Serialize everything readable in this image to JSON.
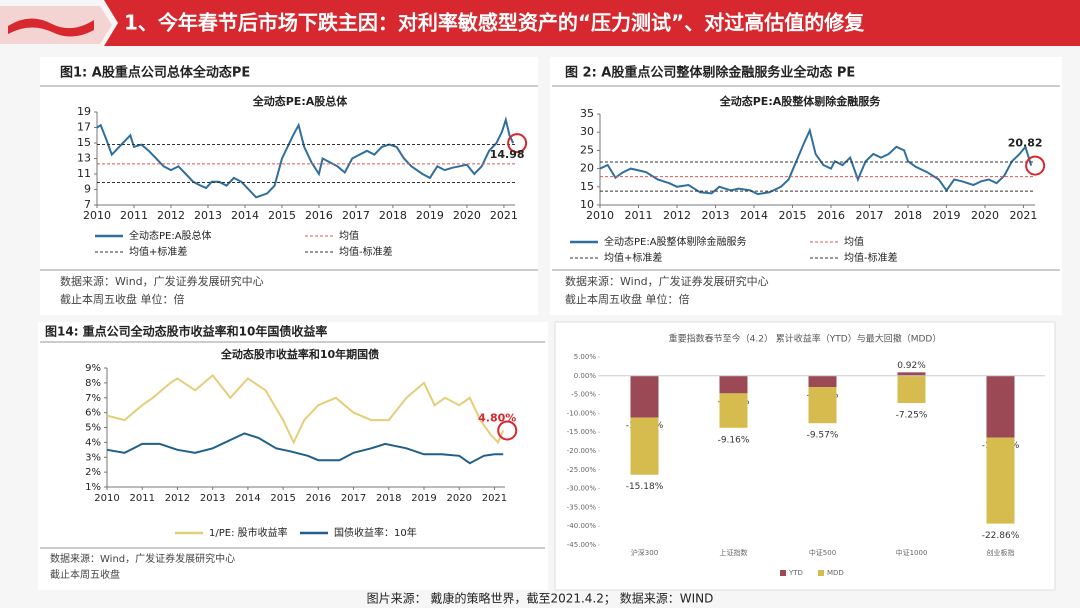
{
  "header": {
    "title": "1、今年春节后市场下跌主因：对利率敏感型资产的“压力测试”、对过高估值的修复"
  },
  "footer": {
    "source": "图片来源： 戴康的策略世界，截至2021.4.2；  数据来源：WIND"
  },
  "chart_data": [
    {
      "type": "line",
      "figure_label": "图1:  A股重点公司总体全动态PE",
      "title": "全动态PE:A股总体",
      "xlim": [
        2010,
        2021.3
      ],
      "xticks": [
        2010,
        2011,
        2012,
        2013,
        2014,
        2015,
        2016,
        2017,
        2018,
        2019,
        2020,
        2021
      ],
      "ylim": [
        7,
        19
      ],
      "yticks": [
        7,
        9,
        11,
        13,
        15,
        17,
        19
      ],
      "series": [
        {
          "name": "全动态PE:A股总体",
          "color": "#2f6f9f",
          "x": [
            2010.0,
            2010.1,
            2010.25,
            2010.4,
            2010.5,
            2010.7,
            2010.9,
            2011.0,
            2011.2,
            2011.4,
            2011.6,
            2011.8,
            2012.0,
            2012.2,
            2012.4,
            2012.6,
            2012.8,
            2012.95,
            2013.1,
            2013.3,
            2013.5,
            2013.7,
            2013.9,
            2014.0,
            2014.3,
            2014.6,
            2014.8,
            2015.0,
            2015.3,
            2015.45,
            2015.6,
            2015.8,
            2016.0,
            2016.1,
            2016.3,
            2016.5,
            2016.7,
            2016.9,
            2017.1,
            2017.3,
            2017.5,
            2017.7,
            2017.9,
            2018.1,
            2018.3,
            2018.5,
            2018.8,
            2019.0,
            2019.2,
            2019.4,
            2019.6,
            2019.8,
            2020.0,
            2020.2,
            2020.4,
            2020.6,
            2020.8,
            2020.95,
            2021.05,
            2021.15,
            2021.25
          ],
          "values": [
            17,
            17.3,
            15.5,
            13.5,
            14,
            15,
            16,
            14.5,
            14.8,
            14,
            13,
            12,
            11.5,
            12,
            11,
            10,
            9.5,
            9.2,
            10,
            10,
            9.5,
            10.5,
            10,
            9.5,
            8,
            8.5,
            9.5,
            13,
            16,
            17.3,
            14.5,
            12.5,
            11,
            13,
            12.5,
            12,
            11.2,
            13,
            13.5,
            14,
            13.5,
            14.5,
            14.8,
            14.5,
            13,
            12,
            11,
            10.5,
            12,
            11.5,
            11.8,
            12,
            12.2,
            11,
            12,
            14,
            15,
            16.5,
            18,
            16,
            14.98
          ]
        }
      ],
      "reference_lines": [
        {
          "name": "均值",
          "value": 12.3,
          "color": "#e05555",
          "dashed": true
        },
        {
          "name": "均值+标准差",
          "value": 14.8,
          "color": "#333333",
          "dashed": true
        },
        {
          "name": "均值-标准差",
          "value": 9.9,
          "color": "#333333",
          "dashed": true
        }
      ],
      "annotations": [
        "14.98"
      ],
      "sources": [
        "数据来源：Wind，广发证券发展研究中心",
        "截止本周五收盘  单位：倍"
      ]
    },
    {
      "type": "line",
      "figure_label": "图 2:  A股重点公司整体剔除金融服务业全动态 PE",
      "title": "全动态PE:A股整体剔除金融服务",
      "xlim": [
        2010,
        2021.3
      ],
      "xticks": [
        2010,
        2011,
        2012,
        2013,
        2014,
        2015,
        2016,
        2017,
        2018,
        2019,
        2020,
        2021
      ],
      "ylim": [
        10,
        35
      ],
      "yticks": [
        10,
        15,
        20,
        25,
        30,
        35
      ],
      "series": [
        {
          "name": "全动态PE:A股整体剔除金融服务",
          "color": "#2f6f9f",
          "x": [
            2010.0,
            2010.2,
            2010.4,
            2010.6,
            2010.8,
            2011.0,
            2011.2,
            2011.5,
            2011.8,
            2012.0,
            2012.3,
            2012.6,
            2012.9,
            2013.1,
            2013.4,
            2013.6,
            2013.9,
            2014.1,
            2014.4,
            2014.7,
            2014.9,
            2015.1,
            2015.3,
            2015.45,
            2015.6,
            2015.8,
            2016.0,
            2016.1,
            2016.3,
            2016.5,
            2016.7,
            2016.9,
            2017.1,
            2017.3,
            2017.5,
            2017.7,
            2017.9,
            2018.0,
            2018.2,
            2018.5,
            2018.8,
            2019.0,
            2019.2,
            2019.4,
            2019.7,
            2019.9,
            2020.1,
            2020.3,
            2020.5,
            2020.7,
            2020.9,
            2021.05,
            2021.2
          ],
          "values": [
            20,
            21,
            17.5,
            19,
            20,
            19.5,
            19,
            17,
            16,
            15,
            15.5,
            13.5,
            13.2,
            15,
            14,
            14.5,
            14,
            13,
            13.5,
            15,
            17,
            22,
            27,
            30.5,
            24,
            21,
            20,
            22,
            21,
            23,
            17,
            22,
            24,
            23,
            24,
            26,
            25,
            22,
            20.5,
            19,
            17,
            14,
            17,
            16.5,
            15.5,
            16.5,
            17,
            16,
            18,
            22,
            24,
            26,
            20.82
          ]
        }
      ],
      "reference_lines": [
        {
          "name": "均值",
          "value": 17.8,
          "color": "#e05555",
          "dashed": true
        },
        {
          "name": "均值+标准差",
          "value": 21.8,
          "color": "#333333",
          "dashed": true
        },
        {
          "name": "均值-标准差",
          "value": 13.8,
          "color": "#333333",
          "dashed": true
        }
      ],
      "annotations": [
        "20.82"
      ],
      "sources": [
        "数据来源：Wind，广发证券发展研究中心",
        "截止本周五收盘  单位：倍"
      ]
    },
    {
      "type": "line",
      "figure_label": "图14:  重点公司全动态股市收益率和10年国债收益率",
      "title": "全动态股市收益率和10年期国债",
      "xlim": [
        2010,
        2021.3
      ],
      "xticks": [
        2010,
        2011,
        2012,
        2013,
        2014,
        2015,
        2016,
        2017,
        2018,
        2019,
        2020,
        2021
      ],
      "ylim": [
        1,
        9
      ],
      "yticks": [
        {
          "value": 1,
          "label": "1%"
        },
        {
          "value": 2,
          "label": "2%"
        },
        {
          "value": 3,
          "label": "3%"
        },
        {
          "value": 4,
          "label": "4%"
        },
        {
          "value": 5,
          "label": "5%"
        },
        {
          "value": 6,
          "label": "6%"
        },
        {
          "value": 7,
          "label": "7%"
        },
        {
          "value": 8,
          "label": "8%"
        },
        {
          "value": 9,
          "label": "9%"
        }
      ],
      "series": [
        {
          "name": "1/PE:  股市收益率",
          "color": "#e6cd78",
          "x": [
            2010.0,
            2010.5,
            2011.0,
            2011.3,
            2011.8,
            2012.0,
            2012.5,
            2013.0,
            2013.5,
            2014.0,
            2014.5,
            2015.0,
            2015.3,
            2015.6,
            2016.0,
            2016.5,
            2017.0,
            2017.5,
            2018.0,
            2018.5,
            2019.0,
            2019.3,
            2019.6,
            2020.0,
            2020.3,
            2020.6,
            2020.9,
            2021.1,
            2021.25
          ],
          "values": [
            5.8,
            5.5,
            6.5,
            7,
            8,
            8.3,
            7.5,
            8.5,
            7,
            8.3,
            7.5,
            5.5,
            4,
            5.5,
            6.5,
            7,
            6,
            5.5,
            5.5,
            7,
            8,
            6.5,
            7,
            6.5,
            7,
            5.5,
            4.5,
            4,
            4.8
          ]
        },
        {
          "name": "国债收益率：10年",
          "color": "#1f5f8b",
          "x": [
            2010.0,
            2010.5,
            2011.0,
            2011.5,
            2012.0,
            2012.5,
            2013.0,
            2013.9,
            2014.3,
            2014.8,
            2015.2,
            2015.7,
            2016.0,
            2016.6,
            2017.0,
            2017.5,
            2017.9,
            2018.5,
            2019.0,
            2019.5,
            2020.0,
            2020.3,
            2020.7,
            2021.0,
            2021.25
          ],
          "values": [
            3.5,
            3.3,
            3.9,
            3.9,
            3.5,
            3.3,
            3.6,
            4.6,
            4.3,
            3.6,
            3.4,
            3.1,
            2.8,
            2.8,
            3.3,
            3.6,
            3.9,
            3.6,
            3.2,
            3.2,
            3.1,
            2.6,
            3.1,
            3.2,
            3.2
          ]
        }
      ],
      "annotations": [
        "4.80%"
      ],
      "sources": [
        "数据来源：Wind，广发证券发展研究中心",
        "截止本周五收盘"
      ]
    },
    {
      "type": "stacked_bar",
      "title": "重要指数春节至今（4.2） 累计收益率（YTD）与最大回撤（MDD）",
      "categories": [
        "沪深300",
        "上证指数",
        "中证500",
        "中证1000",
        "创业板指"
      ],
      "ylim": [
        -45,
        5
      ],
      "yticks": [
        {
          "value": 5,
          "label": "5.00%"
        },
        {
          "value": 0,
          "label": "0.00%"
        },
        {
          "value": -5,
          "label": "-5.00%"
        },
        {
          "value": -10,
          "label": "-10.00%"
        },
        {
          "value": -15,
          "label": "-15.00%"
        },
        {
          "value": -20,
          "label": "-20.00%"
        },
        {
          "value": -25,
          "label": "-25.00%"
        },
        {
          "value": -30,
          "label": "-30.00%"
        },
        {
          "value": -35,
          "label": "-35.00%"
        },
        {
          "value": -40,
          "label": "-40.00%"
        },
        {
          "value": -45,
          "label": "-45.00%"
        }
      ],
      "series": [
        {
          "name": "YTD",
          "color": "#9b4a55",
          "values": [
            -11.13,
            -4.67,
            -3.04,
            0.92,
            -16.45
          ],
          "value_labels": [
            "-11.13%",
            "-4.67%",
            "-3.04%",
            "0.92%",
            "-16.45%"
          ]
        },
        {
          "name": "MDD",
          "color": "#d6bb4e",
          "values": [
            -15.18,
            -9.16,
            -9.57,
            -7.25,
            -22.86
          ],
          "value_labels": [
            "-15.18%",
            "-9.16%",
            "-9.57%",
            "-7.25%",
            "-22.86%"
          ]
        }
      ]
    }
  ]
}
